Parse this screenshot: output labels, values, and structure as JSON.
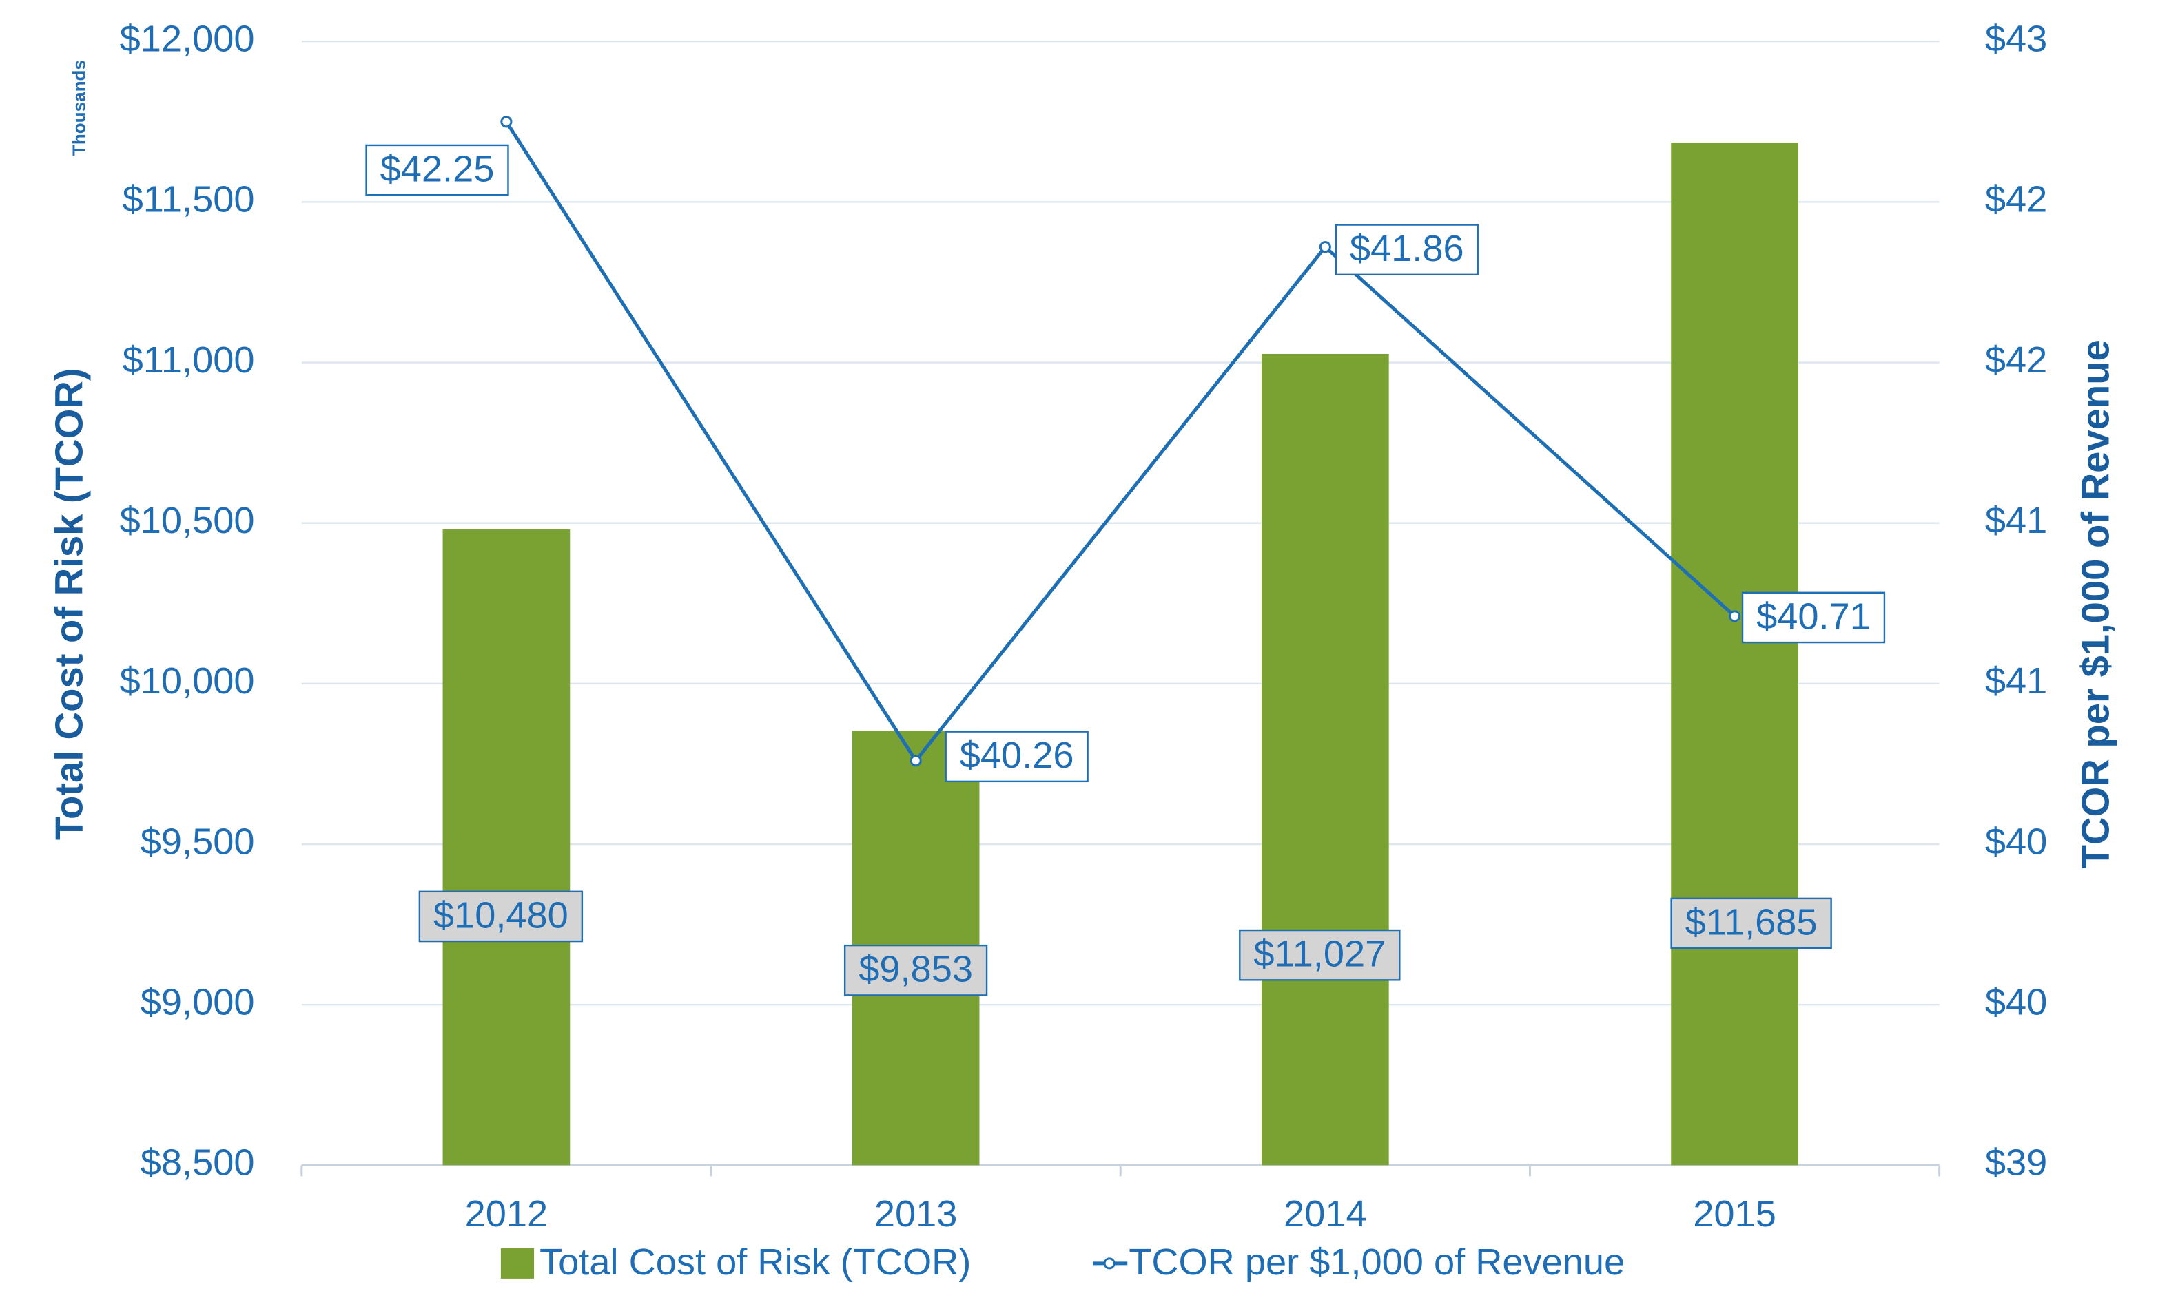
{
  "chart_data": {
    "type": "bar",
    "categories": [
      "2012",
      "2013",
      "2014",
      "2015"
    ],
    "series": [
      {
        "name": "Total Cost of Risk (TCOR)",
        "type": "bar",
        "color": "#7aa232",
        "values": [
          10480,
          9853,
          11027,
          11685
        ],
        "value_labels": [
          "$10,480",
          "$9,853",
          "$11,027",
          "$11,685"
        ]
      },
      {
        "name": "TCOR per $1,000 of Revenue",
        "type": "line",
        "axis": "y2",
        "color": "#1f6fb5",
        "values": [
          42.25,
          40.26,
          41.86,
          40.71
        ],
        "value_labels": [
          "$42.25",
          "$40.26",
          "$41.86",
          "$40.71"
        ]
      }
    ],
    "ylabel": "Total Cost of Risk (TCOR)",
    "y_unit_label": "Thousands",
    "y2label": "TCOR per $1,000 of Revenue",
    "ylim": [
      8500,
      12000
    ],
    "yticks": [
      {
        "value": 8500,
        "label": "$8,500"
      },
      {
        "value": 9000,
        "label": "$9,000"
      },
      {
        "value": 9500,
        "label": "$9,500"
      },
      {
        "value": 10000,
        "label": "$10,000"
      },
      {
        "value": 10500,
        "label": "$10,500"
      },
      {
        "value": 11000,
        "label": "$11,000"
      },
      {
        "value": 11500,
        "label": "$11,500"
      },
      {
        "value": 12000,
        "label": "$12,000"
      }
    ],
    "y2lim": [
      39,
      42.5
    ],
    "y2ticks": [
      {
        "value": 39,
        "label": "$39"
      },
      {
        "value": 39.5,
        "label": "$40"
      },
      {
        "value": 40,
        "label": "$40"
      },
      {
        "value": 40.5,
        "label": "$41"
      },
      {
        "value": 41,
        "label": "$41"
      },
      {
        "value": 41.5,
        "label": "$42"
      },
      {
        "value": 42,
        "label": "$42"
      },
      {
        "value": 42.5,
        "label": "$43"
      }
    ],
    "grid": true,
    "legend": "bottom"
  }
}
